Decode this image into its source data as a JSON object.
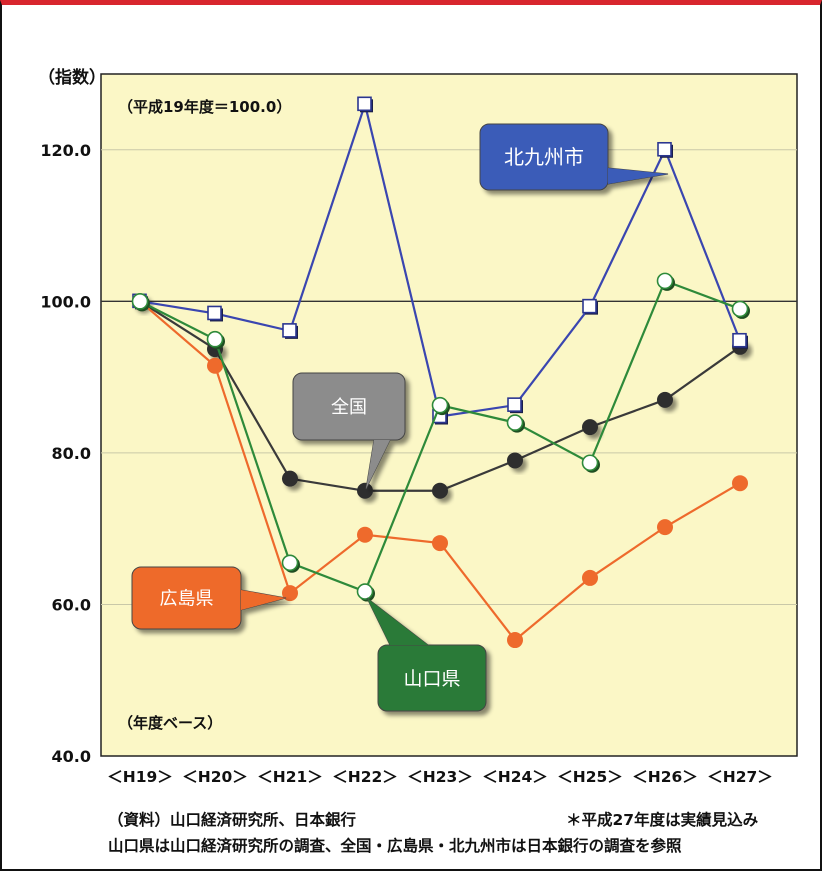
{
  "chart_data": {
    "type": "line",
    "ylabel": "（指数）",
    "base_note": "（平成19年度＝100.0）",
    "basis_note": "（年度ベース）",
    "categories": [
      "＜H19＞",
      "＜H20＞",
      "＜H21＞",
      "＜H22＞",
      "＜H23＞",
      "＜H24＞",
      "＜H25＞",
      "＜H26＞",
      "＜H27＞"
    ],
    "ylim": [
      40,
      130
    ],
    "yticks": [
      40,
      60,
      80,
      100,
      120
    ],
    "ytick_labels": [
      "40.0",
      "60.0",
      "80.0",
      "100.0",
      "120.0"
    ],
    "reference_line": 100,
    "grid": true,
    "series": [
      {
        "name": "北九州市",
        "color": "#3a46b0",
        "marker": "square",
        "values": [
          100,
          98.4,
          96.1,
          126.0,
          84.8,
          86.3,
          99.3,
          120.0,
          94.8
        ]
      },
      {
        "name": "全国",
        "color": "#3a3a3a",
        "marker": "filled",
        "values": [
          100,
          93.7,
          76.6,
          75.0,
          75.0,
          79.0,
          83.4,
          87.0,
          94.0
        ]
      },
      {
        "name": "広島県",
        "color": "#ee6a2c",
        "marker": "orange",
        "values": [
          100,
          91.5,
          61.5,
          69.2,
          68.1,
          55.3,
          63.5,
          70.2,
          76.0
        ]
      },
      {
        "name": "山口県",
        "color": "#2e8a3a",
        "marker": "open",
        "values": [
          100,
          95.0,
          65.5,
          61.7,
          86.3,
          84.0,
          78.7,
          102.7,
          99.0
        ]
      }
    ],
    "callouts": [
      {
        "label": "北九州市",
        "bg": "#3b5cb8",
        "text_color": "#ffffff"
      },
      {
        "label": "全国",
        "bg": "#8c8c8c",
        "text_color": "#ffffff"
      },
      {
        "label": "広島県",
        "bg": "#ee6a2c",
        "text_color": "#ffffff"
      },
      {
        "label": "山口県",
        "bg": "#2c7a38",
        "text_color": "#ffffff"
      }
    ]
  },
  "notes": {
    "source": "（資料）山口経済研究所、日本銀行",
    "estimate": "＊平成27年度は実績見込み",
    "detail": "山口県は山口経済研究所の調査、全国・広島県・北九州市は日本銀行の調査を参照"
  }
}
